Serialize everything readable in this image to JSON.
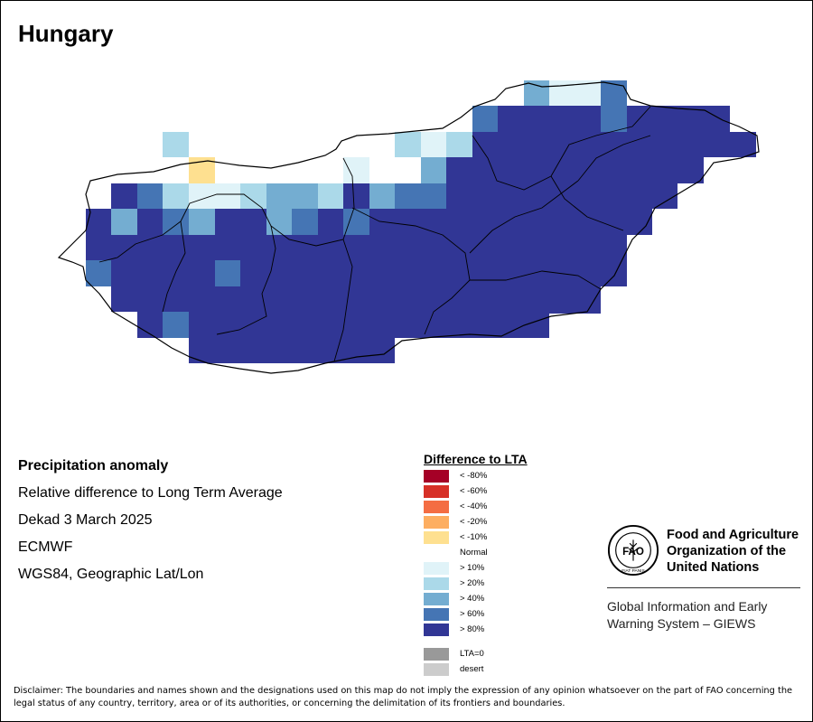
{
  "title": "Hungary",
  "info": {
    "heading": "Precipitation anomaly",
    "line1": "Relative difference to Long Term Average",
    "line2": "Dekad 3 March 2025",
    "line3": "ECMWF",
    "line4": "WGS84, Geographic Lat/Lon"
  },
  "legend": {
    "title": "Difference to LTA",
    "items": [
      {
        "label": "< -80%",
        "color": "#a50026"
      },
      {
        "label": "< -60%",
        "color": "#d73027"
      },
      {
        "label": "< -40%",
        "color": "#f46d43"
      },
      {
        "label": "< -20%",
        "color": "#fdae61"
      },
      {
        "label": "< -10%",
        "color": "#fee090"
      },
      {
        "label": "Normal",
        "color": "#ffffff"
      },
      {
        "label": "> 10%",
        "color": "#e0f3f8"
      },
      {
        "label": "> 20%",
        "color": "#abd9e9"
      },
      {
        "label": "> 40%",
        "color": "#74add1"
      },
      {
        "label": "> 60%",
        "color": "#4575b4"
      },
      {
        "label": "> 80%",
        "color": "#313695"
      },
      {
        "label": "LTA=0",
        "color": "#999999"
      },
      {
        "label": "desert",
        "color": "#cccccc"
      }
    ]
  },
  "fao": {
    "name_line1": "Food and Agriculture",
    "name_line2": "Organization of the",
    "name_line3": "United Nations",
    "giews_line1": "Global Information and Early",
    "giews_line2": "Warning System – GIEWS",
    "logo_text": "FAO",
    "logo_motto": "FIAT PANIS"
  },
  "disclaimer": "Disclaimer: The boundaries and names shown and the designations used on this map do not imply the expression of any opinion whatsoever on the part of FAO concerning the legal status of any country, territory, area or of its authorities, or concerning the delimitation of its frontiers and boundaries.",
  "map_grid": {
    "rows": [
      "..........................11..4.........",
      ".........................4444.4444444444",
      ".....7......................ppp.44444444",
      "..........................4333444444444.",
      ".....2...............1.000444444444444..",
      "...33333.11122.3333.333334444444444444..",
      "..444344.444444444444444444444444444444.",
      "..444444.444444444444444444444444444444.",
      "...44.4444444444444444444444444444444...",
      "...444444444444444444444444444444444....",
      "....44444444444444444444444444444444....",
      ".....44444444444444444444444444444......",
      "......444444444444444444444444..........",
      ".........44444444444444.................",
      "........................................"
    ],
    "legend_key": {
      "2": "< -10%",
      "0": "Normal",
      "1": "> 10%",
      "p": "> 20%",
      "7": "> 20%",
      "3": "> 40%",
      "4": "> 80%"
    }
  }
}
